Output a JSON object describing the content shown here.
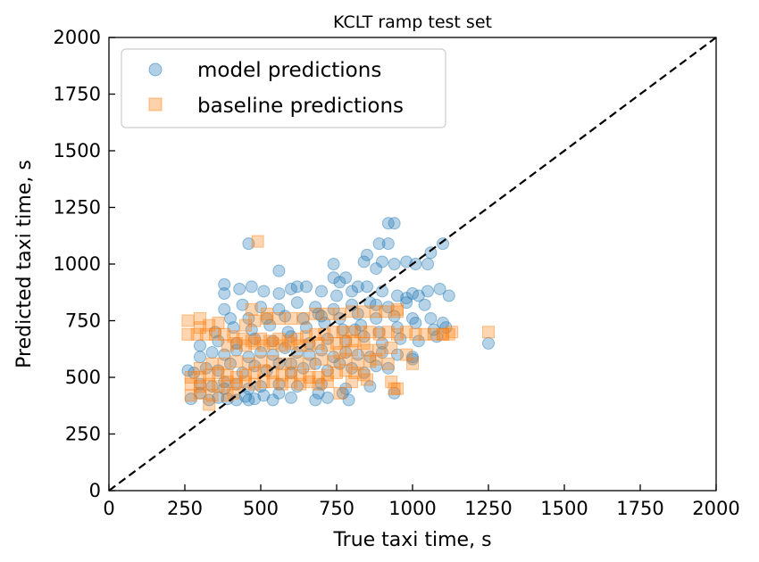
{
  "chart_data": {
    "type": "scatter",
    "title": "KCLT ramp test set",
    "xlabel": "True taxi time, s",
    "ylabel": "Predicted taxi time, s",
    "xlim": [
      0,
      2000
    ],
    "ylim": [
      0,
      2000
    ],
    "xticks": [
      "0",
      "250",
      "500",
      "750",
      "1000",
      "1250",
      "1500",
      "1750",
      "2000"
    ],
    "yticks": [
      "0",
      "250",
      "500",
      "750",
      "1000",
      "1250",
      "1500",
      "1750",
      "2000"
    ],
    "grid": false,
    "legend_position": "upper-left",
    "reference_line": {
      "style": "dashed",
      "color": "#000000",
      "from": [
        0,
        0
      ],
      "to": [
        2000,
        2000
      ]
    },
    "series": [
      {
        "name": "model predictions",
        "marker": "circle",
        "color": "#1f77b4",
        "points": [
          [
            270,
            405
          ],
          [
            300,
            430
          ],
          [
            330,
            400
          ],
          [
            360,
            410
          ],
          [
            390,
            405
          ],
          [
            420,
            400
          ],
          [
            450,
            415
          ],
          [
            480,
            405
          ],
          [
            510,
            420
          ],
          [
            540,
            400
          ],
          [
            600,
            410
          ],
          [
            680,
            400
          ],
          [
            790,
            400
          ],
          [
            770,
            430
          ],
          [
            940,
            430
          ],
          [
            300,
            470
          ],
          [
            340,
            460
          ],
          [
            380,
            480
          ],
          [
            420,
            470
          ],
          [
            460,
            450
          ],
          [
            500,
            460
          ],
          [
            560,
            470
          ],
          [
            620,
            460
          ],
          [
            700,
            470
          ],
          [
            780,
            450
          ],
          [
            860,
            460
          ],
          [
            280,
            520
          ],
          [
            320,
            540
          ],
          [
            360,
            530
          ],
          [
            400,
            560
          ],
          [
            440,
            520
          ],
          [
            480,
            550
          ],
          [
            520,
            530
          ],
          [
            560,
            560
          ],
          [
            600,
            520
          ],
          [
            640,
            540
          ],
          [
            680,
            560
          ],
          [
            720,
            530
          ],
          [
            760,
            560
          ],
          [
            800,
            540
          ],
          [
            840,
            520
          ],
          [
            880,
            550
          ],
          [
            920,
            540
          ],
          [
            260,
            530
          ],
          [
            300,
            590
          ],
          [
            340,
            610
          ],
          [
            380,
            600
          ],
          [
            420,
            620
          ],
          [
            460,
            590
          ],
          [
            500,
            610
          ],
          [
            540,
            600
          ],
          [
            580,
            630
          ],
          [
            620,
            610
          ],
          [
            660,
            600
          ],
          [
            700,
            620
          ],
          [
            740,
            590
          ],
          [
            780,
            610
          ],
          [
            820,
            600
          ],
          [
            860,
            590
          ],
          [
            900,
            610
          ],
          [
            950,
            600
          ],
          [
            1000,
            590
          ],
          [
            300,
            640
          ],
          [
            360,
            660
          ],
          [
            420,
            650
          ],
          [
            480,
            670
          ],
          [
            540,
            660
          ],
          [
            600,
            680
          ],
          [
            660,
            650
          ],
          [
            720,
            670
          ],
          [
            780,
            660
          ],
          [
            840,
            680
          ],
          [
            900,
            650
          ],
          [
            960,
            670
          ],
          [
            1020,
            660
          ],
          [
            1080,
            680
          ],
          [
            350,
            700
          ],
          [
            410,
            720
          ],
          [
            470,
            710
          ],
          [
            530,
            730
          ],
          [
            590,
            700
          ],
          [
            650,
            720
          ],
          [
            710,
            740
          ],
          [
            770,
            710
          ],
          [
            830,
            730
          ],
          [
            890,
            700
          ],
          [
            950,
            720
          ],
          [
            1010,
            740
          ],
          [
            1070,
            710
          ],
          [
            1110,
            720
          ],
          [
            400,
            760
          ],
          [
            460,
            760
          ],
          [
            520,
            760
          ],
          [
            580,
            770
          ],
          [
            640,
            760
          ],
          [
            700,
            770
          ],
          [
            760,
            760
          ],
          [
            820,
            780
          ],
          [
            880,
            760
          ],
          [
            940,
            770
          ],
          [
            1000,
            760
          ],
          [
            1060,
            760
          ],
          [
            1100,
            740
          ],
          [
            380,
            800
          ],
          [
            440,
            820
          ],
          [
            500,
            810
          ],
          [
            560,
            800
          ],
          [
            620,
            830
          ],
          [
            680,
            810
          ],
          [
            740,
            800
          ],
          [
            800,
            820
          ],
          [
            860,
            830
          ],
          [
            920,
            810
          ],
          [
            980,
            830
          ],
          [
            1040,
            820
          ],
          [
            380,
            870
          ],
          [
            430,
            890
          ],
          [
            470,
            900
          ],
          [
            510,
            880
          ],
          [
            560,
            870
          ],
          [
            600,
            890
          ],
          [
            650,
            900
          ],
          [
            700,
            880
          ],
          [
            750,
            860
          ],
          [
            800,
            880
          ],
          [
            850,
            900
          ],
          [
            900,
            880
          ],
          [
            950,
            860
          ],
          [
            1000,
            870
          ],
          [
            1050,
            880
          ],
          [
            1090,
            890
          ],
          [
            380,
            910
          ],
          [
            560,
            970
          ],
          [
            620,
            900
          ],
          [
            740,
            940
          ],
          [
            760,
            920
          ],
          [
            820,
            900
          ],
          [
            840,
            1010
          ],
          [
            850,
            1040
          ],
          [
            880,
            980
          ],
          [
            900,
            1010
          ],
          [
            940,
            1000
          ],
          [
            980,
            1010
          ],
          [
            1010,
            1000
          ],
          [
            1050,
            1000
          ],
          [
            740,
            1000
          ],
          [
            780,
            940
          ],
          [
            890,
            1090
          ],
          [
            920,
            1090
          ],
          [
            1100,
            1090
          ],
          [
            1060,
            1050
          ],
          [
            920,
            1180
          ],
          [
            940,
            1180
          ],
          [
            460,
            1090
          ],
          [
            1250,
            650
          ],
          [
            1000,
            580
          ],
          [
            460,
            400
          ],
          [
            560,
            430
          ],
          [
            690,
            430
          ],
          [
            720,
            410
          ],
          [
            380,
            450
          ],
          [
            600,
            560
          ],
          [
            690,
            780
          ],
          [
            810,
            710
          ],
          [
            880,
            820
          ],
          [
            1120,
            860
          ],
          [
            980,
            850
          ],
          [
            1020,
            860
          ]
        ]
      },
      {
        "name": "baseline predictions",
        "marker": "square",
        "color": "#ff7f0e",
        "points": [
          [
            260,
            690
          ],
          [
            290,
            690
          ],
          [
            320,
            690
          ],
          [
            350,
            690
          ],
          [
            380,
            690
          ],
          [
            410,
            680
          ],
          [
            440,
            670
          ],
          [
            470,
            660
          ],
          [
            500,
            670
          ],
          [
            530,
            660
          ],
          [
            560,
            670
          ],
          [
            590,
            660
          ],
          [
            620,
            670
          ],
          [
            650,
            680
          ],
          [
            680,
            690
          ],
          [
            710,
            690
          ],
          [
            740,
            700
          ],
          [
            770,
            700
          ],
          [
            800,
            700
          ],
          [
            830,
            700
          ],
          [
            860,
            700
          ],
          [
            890,
            690
          ],
          [
            920,
            700
          ],
          [
            950,
            690
          ],
          [
            980,
            700
          ],
          [
            1010,
            690
          ],
          [
            1040,
            690
          ],
          [
            1070,
            690
          ],
          [
            1100,
            690
          ],
          [
            1120,
            690
          ],
          [
            390,
            640
          ],
          [
            420,
            650
          ],
          [
            450,
            640
          ],
          [
            480,
            650
          ],
          [
            510,
            640
          ],
          [
            540,
            650
          ],
          [
            570,
            640
          ],
          [
            600,
            650
          ],
          [
            630,
            640
          ],
          [
            660,
            640
          ],
          [
            690,
            650
          ],
          [
            720,
            640
          ],
          [
            750,
            650
          ],
          [
            780,
            660
          ],
          [
            810,
            660
          ],
          [
            840,
            650
          ],
          [
            300,
            720
          ],
          [
            330,
            730
          ],
          [
            360,
            740
          ],
          [
            450,
            730
          ],
          [
            480,
            750
          ],
          [
            520,
            760
          ],
          [
            560,
            760
          ],
          [
            600,
            760
          ],
          [
            640,
            760
          ],
          [
            680,
            780
          ],
          [
            720,
            780
          ],
          [
            760,
            780
          ],
          [
            800,
            790
          ],
          [
            840,
            790
          ],
          [
            880,
            790
          ],
          [
            910,
            790
          ],
          [
            950,
            790
          ],
          [
            270,
            500
          ],
          [
            300,
            500
          ],
          [
            330,
            510
          ],
          [
            360,
            520
          ],
          [
            390,
            510
          ],
          [
            420,
            500
          ],
          [
            450,
            510
          ],
          [
            480,
            520
          ],
          [
            510,
            530
          ],
          [
            540,
            520
          ],
          [
            570,
            510
          ],
          [
            600,
            520
          ],
          [
            630,
            510
          ],
          [
            660,
            500
          ],
          [
            690,
            500
          ],
          [
            720,
            510
          ],
          [
            750,
            520
          ],
          [
            780,
            530
          ],
          [
            810,
            520
          ],
          [
            840,
            510
          ],
          [
            270,
            470
          ],
          [
            300,
            460
          ],
          [
            330,
            470
          ],
          [
            360,
            460
          ],
          [
            390,
            480
          ],
          [
            420,
            470
          ],
          [
            450,
            480
          ],
          [
            480,
            470
          ],
          [
            510,
            480
          ],
          [
            540,
            480
          ],
          [
            570,
            470
          ],
          [
            600,
            480
          ],
          [
            630,
            470
          ],
          [
            660,
            480
          ],
          [
            690,
            470
          ],
          [
            720,
            480
          ],
          [
            300,
            540
          ],
          [
            340,
            560
          ],
          [
            380,
            560
          ],
          [
            420,
            570
          ],
          [
            460,
            560
          ],
          [
            500,
            570
          ],
          [
            540,
            570
          ],
          [
            580,
            560
          ],
          [
            620,
            570
          ],
          [
            660,
            560
          ],
          [
            700,
            580
          ],
          [
            740,
            570
          ],
          [
            780,
            580
          ],
          [
            820,
            560
          ],
          [
            860,
            570
          ],
          [
            270,
            420
          ],
          [
            300,
            430
          ],
          [
            330,
            380
          ],
          [
            340,
            420
          ],
          [
            390,
            420
          ],
          [
            410,
            430
          ],
          [
            760,
            430
          ],
          [
            800,
            480
          ],
          [
            850,
            490
          ],
          [
            950,
            450
          ],
          [
            980,
            600
          ],
          [
            1000,
            560
          ],
          [
            930,
            480
          ],
          [
            940,
            450
          ],
          [
            920,
            560
          ],
          [
            880,
            580
          ],
          [
            950,
            800
          ],
          [
            260,
            750
          ],
          [
            300,
            760
          ],
          [
            490,
            1100
          ],
          [
            470,
            800
          ],
          [
            520,
            780
          ],
          [
            1250,
            700
          ],
          [
            1130,
            700
          ],
          [
            1100,
            690
          ],
          [
            760,
            610
          ],
          [
            800,
            620
          ],
          [
            850,
            620
          ],
          [
            890,
            620
          ],
          [
            930,
            630
          ]
        ]
      }
    ]
  }
}
